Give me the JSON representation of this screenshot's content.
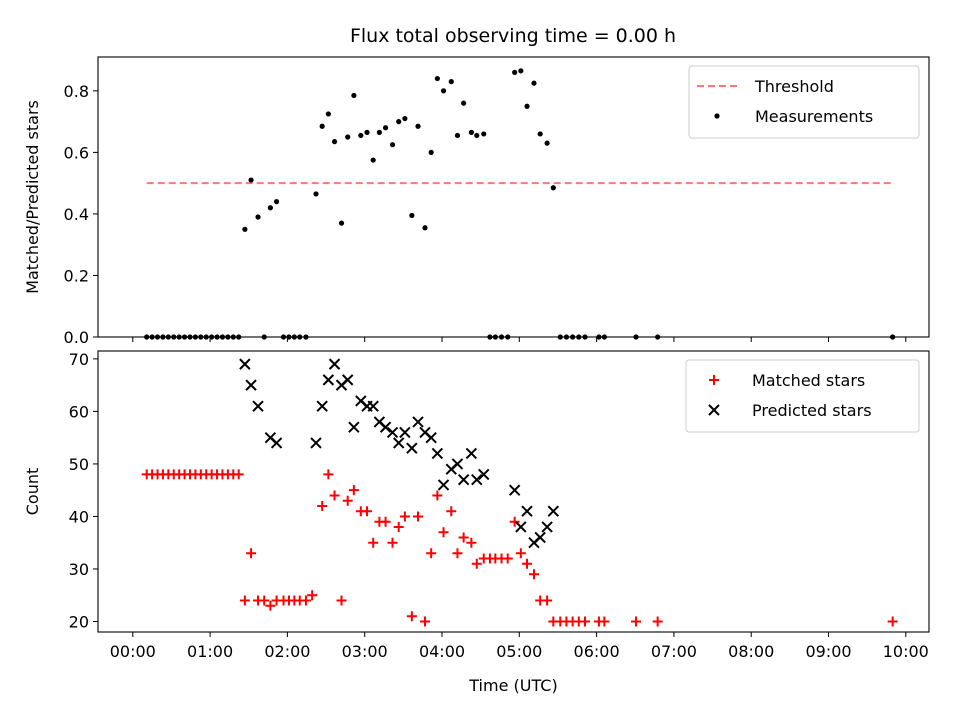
{
  "title": "Flux total observing time = 0.00 h",
  "chart_data": [
    {
      "type": "scatter",
      "panel": "top",
      "xlabel": "",
      "ylabel": "Matched/Predicted stars",
      "xlim": [
        -0.45,
        10.3
      ],
      "ylim": [
        0,
        0.91
      ],
      "yticks": [
        "0.0",
        "0.2",
        "0.4",
        "0.6",
        "0.8"
      ],
      "ytick_values": [
        0,
        0.2,
        0.4,
        0.6,
        0.8
      ],
      "legend_position": "upper right",
      "threshold": {
        "name": "Threshold",
        "value": 0.5,
        "x_range": [
          0.18,
          9.83
        ],
        "color": "#ff7777"
      },
      "series": [
        {
          "name": "Measurements",
          "color": "#000000",
          "marker": "dot",
          "points": [
            [
              0.18,
              0
            ],
            [
              0.25,
              0
            ],
            [
              0.32,
              0
            ],
            [
              0.39,
              0
            ],
            [
              0.46,
              0
            ],
            [
              0.53,
              0
            ],
            [
              0.6,
              0
            ],
            [
              0.67,
              0
            ],
            [
              0.74,
              0
            ],
            [
              0.81,
              0
            ],
            [
              0.88,
              0
            ],
            [
              0.95,
              0
            ],
            [
              1.02,
              0
            ],
            [
              1.09,
              0
            ],
            [
              1.16,
              0
            ],
            [
              1.23,
              0
            ],
            [
              1.3,
              0
            ],
            [
              1.37,
              0
            ],
            [
              1.45,
              0.35
            ],
            [
              1.53,
              0.51
            ],
            [
              1.62,
              0.39
            ],
            [
              1.7,
              0
            ],
            [
              1.78,
              0.42
            ],
            [
              1.86,
              0.44
            ],
            [
              1.95,
              0
            ],
            [
              2.02,
              0
            ],
            [
              2.09,
              0
            ],
            [
              2.16,
              0
            ],
            [
              2.24,
              0
            ],
            [
              2.37,
              0.465
            ],
            [
              2.45,
              0.685
            ],
            [
              2.53,
              0.725
            ],
            [
              2.61,
              0.635
            ],
            [
              2.7,
              0.37
            ],
            [
              2.78,
              0.65
            ],
            [
              2.86,
              0.785
            ],
            [
              2.95,
              0.655
            ],
            [
              3.03,
              0.665
            ],
            [
              3.11,
              0.575
            ],
            [
              3.19,
              0.665
            ],
            [
              3.27,
              0.68
            ],
            [
              3.36,
              0.625
            ],
            [
              3.44,
              0.7
            ],
            [
              3.52,
              0.71
            ],
            [
              3.61,
              0.395
            ],
            [
              3.69,
              0.685
            ],
            [
              3.78,
              0.355
            ],
            [
              3.86,
              0.6
            ],
            [
              3.94,
              0.84
            ],
            [
              4.02,
              0.8
            ],
            [
              4.12,
              0.83
            ],
            [
              4.2,
              0.655
            ],
            [
              4.28,
              0.76
            ],
            [
              4.38,
              0.665
            ],
            [
              4.45,
              0.655
            ],
            [
              4.54,
              0.66
            ],
            [
              4.62,
              0
            ],
            [
              4.69,
              0
            ],
            [
              4.77,
              0
            ],
            [
              4.85,
              0
            ],
            [
              4.94,
              0.86
            ],
            [
              5.02,
              0.865
            ],
            [
              5.1,
              0.75
            ],
            [
              5.19,
              0.825
            ],
            [
              5.27,
              0.66
            ],
            [
              5.36,
              0.63
            ],
            [
              5.44,
              0.485
            ],
            [
              5.53,
              0
            ],
            [
              5.61,
              0
            ],
            [
              5.69,
              0
            ],
            [
              5.77,
              0
            ],
            [
              5.85,
              0
            ],
            [
              6.03,
              0
            ],
            [
              6.1,
              0
            ],
            [
              6.51,
              0
            ],
            [
              6.79,
              0
            ],
            [
              9.83,
              0
            ]
          ]
        }
      ]
    },
    {
      "type": "scatter",
      "panel": "bottom",
      "xlabel": "Time (UTC)",
      "ylabel": "Count",
      "xlim": [
        -0.45,
        10.3
      ],
      "ylim": [
        18,
        71.5
      ],
      "xticks": [
        "00:00",
        "01:00",
        "02:00",
        "03:00",
        "04:00",
        "05:00",
        "06:00",
        "07:00",
        "08:00",
        "09:00",
        "10:00"
      ],
      "xtick_values": [
        0,
        1,
        2,
        3,
        4,
        5,
        6,
        7,
        8,
        9,
        10
      ],
      "yticks": [
        "20",
        "30",
        "40",
        "50",
        "60",
        "70"
      ],
      "ytick_values": [
        20,
        30,
        40,
        50,
        60,
        70
      ],
      "legend_position": "upper right",
      "series": [
        {
          "name": "Matched stars",
          "color": "#ff0000",
          "marker": "plus",
          "points": [
            [
              0.18,
              48
            ],
            [
              0.25,
              48
            ],
            [
              0.32,
              48
            ],
            [
              0.39,
              48
            ],
            [
              0.46,
              48
            ],
            [
              0.53,
              48
            ],
            [
              0.6,
              48
            ],
            [
              0.67,
              48
            ],
            [
              0.74,
              48
            ],
            [
              0.81,
              48
            ],
            [
              0.88,
              48
            ],
            [
              0.95,
              48
            ],
            [
              1.02,
              48
            ],
            [
              1.09,
              48
            ],
            [
              1.16,
              48
            ],
            [
              1.23,
              48
            ],
            [
              1.3,
              48
            ],
            [
              1.37,
              48
            ],
            [
              1.45,
              24
            ],
            [
              1.53,
              33
            ],
            [
              1.62,
              24
            ],
            [
              1.7,
              24
            ],
            [
              1.78,
              23
            ],
            [
              1.86,
              24
            ],
            [
              1.95,
              24
            ],
            [
              2.02,
              24
            ],
            [
              2.09,
              24
            ],
            [
              2.16,
              24
            ],
            [
              2.24,
              24
            ],
            [
              2.32,
              25
            ],
            [
              2.45,
              42
            ],
            [
              2.53,
              48
            ],
            [
              2.61,
              44
            ],
            [
              2.7,
              24
            ],
            [
              2.78,
              43
            ],
            [
              2.86,
              45
            ],
            [
              2.95,
              41
            ],
            [
              3.03,
              41
            ],
            [
              3.11,
              35
            ],
            [
              3.19,
              39
            ],
            [
              3.27,
              39
            ],
            [
              3.36,
              35
            ],
            [
              3.44,
              38
            ],
            [
              3.52,
              40
            ],
            [
              3.61,
              21
            ],
            [
              3.69,
              40
            ],
            [
              3.78,
              20
            ],
            [
              3.86,
              33
            ],
            [
              3.94,
              44
            ],
            [
              4.02,
              37
            ],
            [
              4.12,
              41
            ],
            [
              4.2,
              33
            ],
            [
              4.28,
              36
            ],
            [
              4.38,
              35
            ],
            [
              4.45,
              31
            ],
            [
              4.54,
              32
            ],
            [
              4.62,
              32
            ],
            [
              4.69,
              32
            ],
            [
              4.77,
              32
            ],
            [
              4.85,
              32
            ],
            [
              4.94,
              39
            ],
            [
              5.02,
              33
            ],
            [
              5.1,
              31
            ],
            [
              5.19,
              29
            ],
            [
              5.27,
              24
            ],
            [
              5.36,
              24
            ],
            [
              5.44,
              20
            ],
            [
              5.53,
              20
            ],
            [
              5.61,
              20
            ],
            [
              5.69,
              20
            ],
            [
              5.77,
              20
            ],
            [
              5.85,
              20
            ],
            [
              6.03,
              20
            ],
            [
              6.1,
              20
            ],
            [
              6.51,
              20
            ],
            [
              6.79,
              20
            ],
            [
              9.83,
              20
            ]
          ]
        },
        {
          "name": "Predicted stars",
          "color": "#000000",
          "marker": "x",
          "points": [
            [
              1.45,
              69
            ],
            [
              1.53,
              65
            ],
            [
              1.62,
              61
            ],
            [
              1.78,
              55
            ],
            [
              1.86,
              54
            ],
            [
              2.37,
              54
            ],
            [
              2.45,
              61
            ],
            [
              2.53,
              66
            ],
            [
              2.61,
              69
            ],
            [
              2.7,
              65
            ],
            [
              2.78,
              66
            ],
            [
              2.86,
              57
            ],
            [
              2.95,
              62
            ],
            [
              3.03,
              61
            ],
            [
              3.11,
              61
            ],
            [
              3.19,
              58
            ],
            [
              3.27,
              57
            ],
            [
              3.36,
              56
            ],
            [
              3.44,
              54
            ],
            [
              3.52,
              56
            ],
            [
              3.61,
              53
            ],
            [
              3.69,
              58
            ],
            [
              3.78,
              56
            ],
            [
              3.86,
              55
            ],
            [
              3.94,
              52
            ],
            [
              4.02,
              46
            ],
            [
              4.12,
              49
            ],
            [
              4.2,
              50
            ],
            [
              4.28,
              47
            ],
            [
              4.38,
              52
            ],
            [
              4.45,
              47
            ],
            [
              4.54,
              48
            ],
            [
              4.94,
              45
            ],
            [
              5.02,
              38
            ],
            [
              5.1,
              41
            ],
            [
              5.19,
              35
            ],
            [
              5.27,
              36
            ],
            [
              5.36,
              38
            ],
            [
              5.44,
              41
            ]
          ]
        }
      ]
    }
  ]
}
